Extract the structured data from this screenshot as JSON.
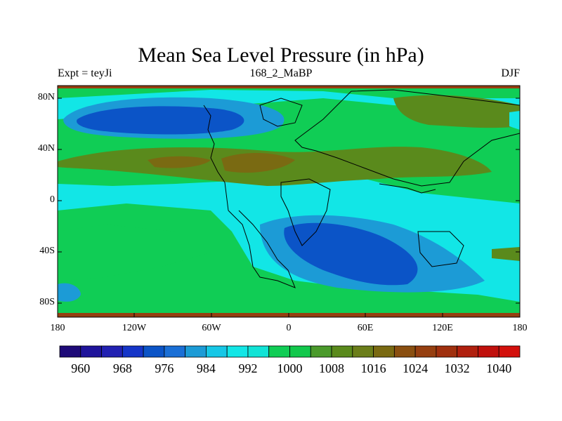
{
  "title": "Mean Sea Level Pressure (in hPa)",
  "subtitle_left": "Expt = teyJi",
  "subtitle_center": "168_2_MaBP",
  "subtitle_right": "DJF",
  "lat_labels": [
    "80N",
    "40N",
    "0",
    "40S",
    "80S"
  ],
  "lon_labels": [
    "180",
    "120W",
    "60W",
    "0",
    "60E",
    "120E",
    "180"
  ],
  "colorbar": {
    "labels": [
      "960",
      "968",
      "976",
      "984",
      "992",
      "1000",
      "1008",
      "1016",
      "1024",
      "1032",
      "1040"
    ],
    "colors": [
      "#1e0a78",
      "#1f149b",
      "#2221b2",
      "#1535c8",
      "#0b54c7",
      "#1a6fd6",
      "#1c9bd6",
      "#16c7e6",
      "#12e6e6",
      "#11e3d6",
      "#10cd55",
      "#12c84c",
      "#4a9a2b",
      "#5a8a1c",
      "#6b7e1a",
      "#7a6a12",
      "#8a4f10",
      "#963f10",
      "#a0300e",
      "#b0200e",
      "#c0100c",
      "#d3100c"
    ]
  },
  "fill_colors": {
    "ocean_low": "#12e6e6",
    "mid": "#10cd55",
    "high": "#5a8a1c",
    "higher": "#7a6a12",
    "low": "#1c9bd6",
    "lower": "#0b54c7",
    "frame_band": "#963f10"
  }
}
